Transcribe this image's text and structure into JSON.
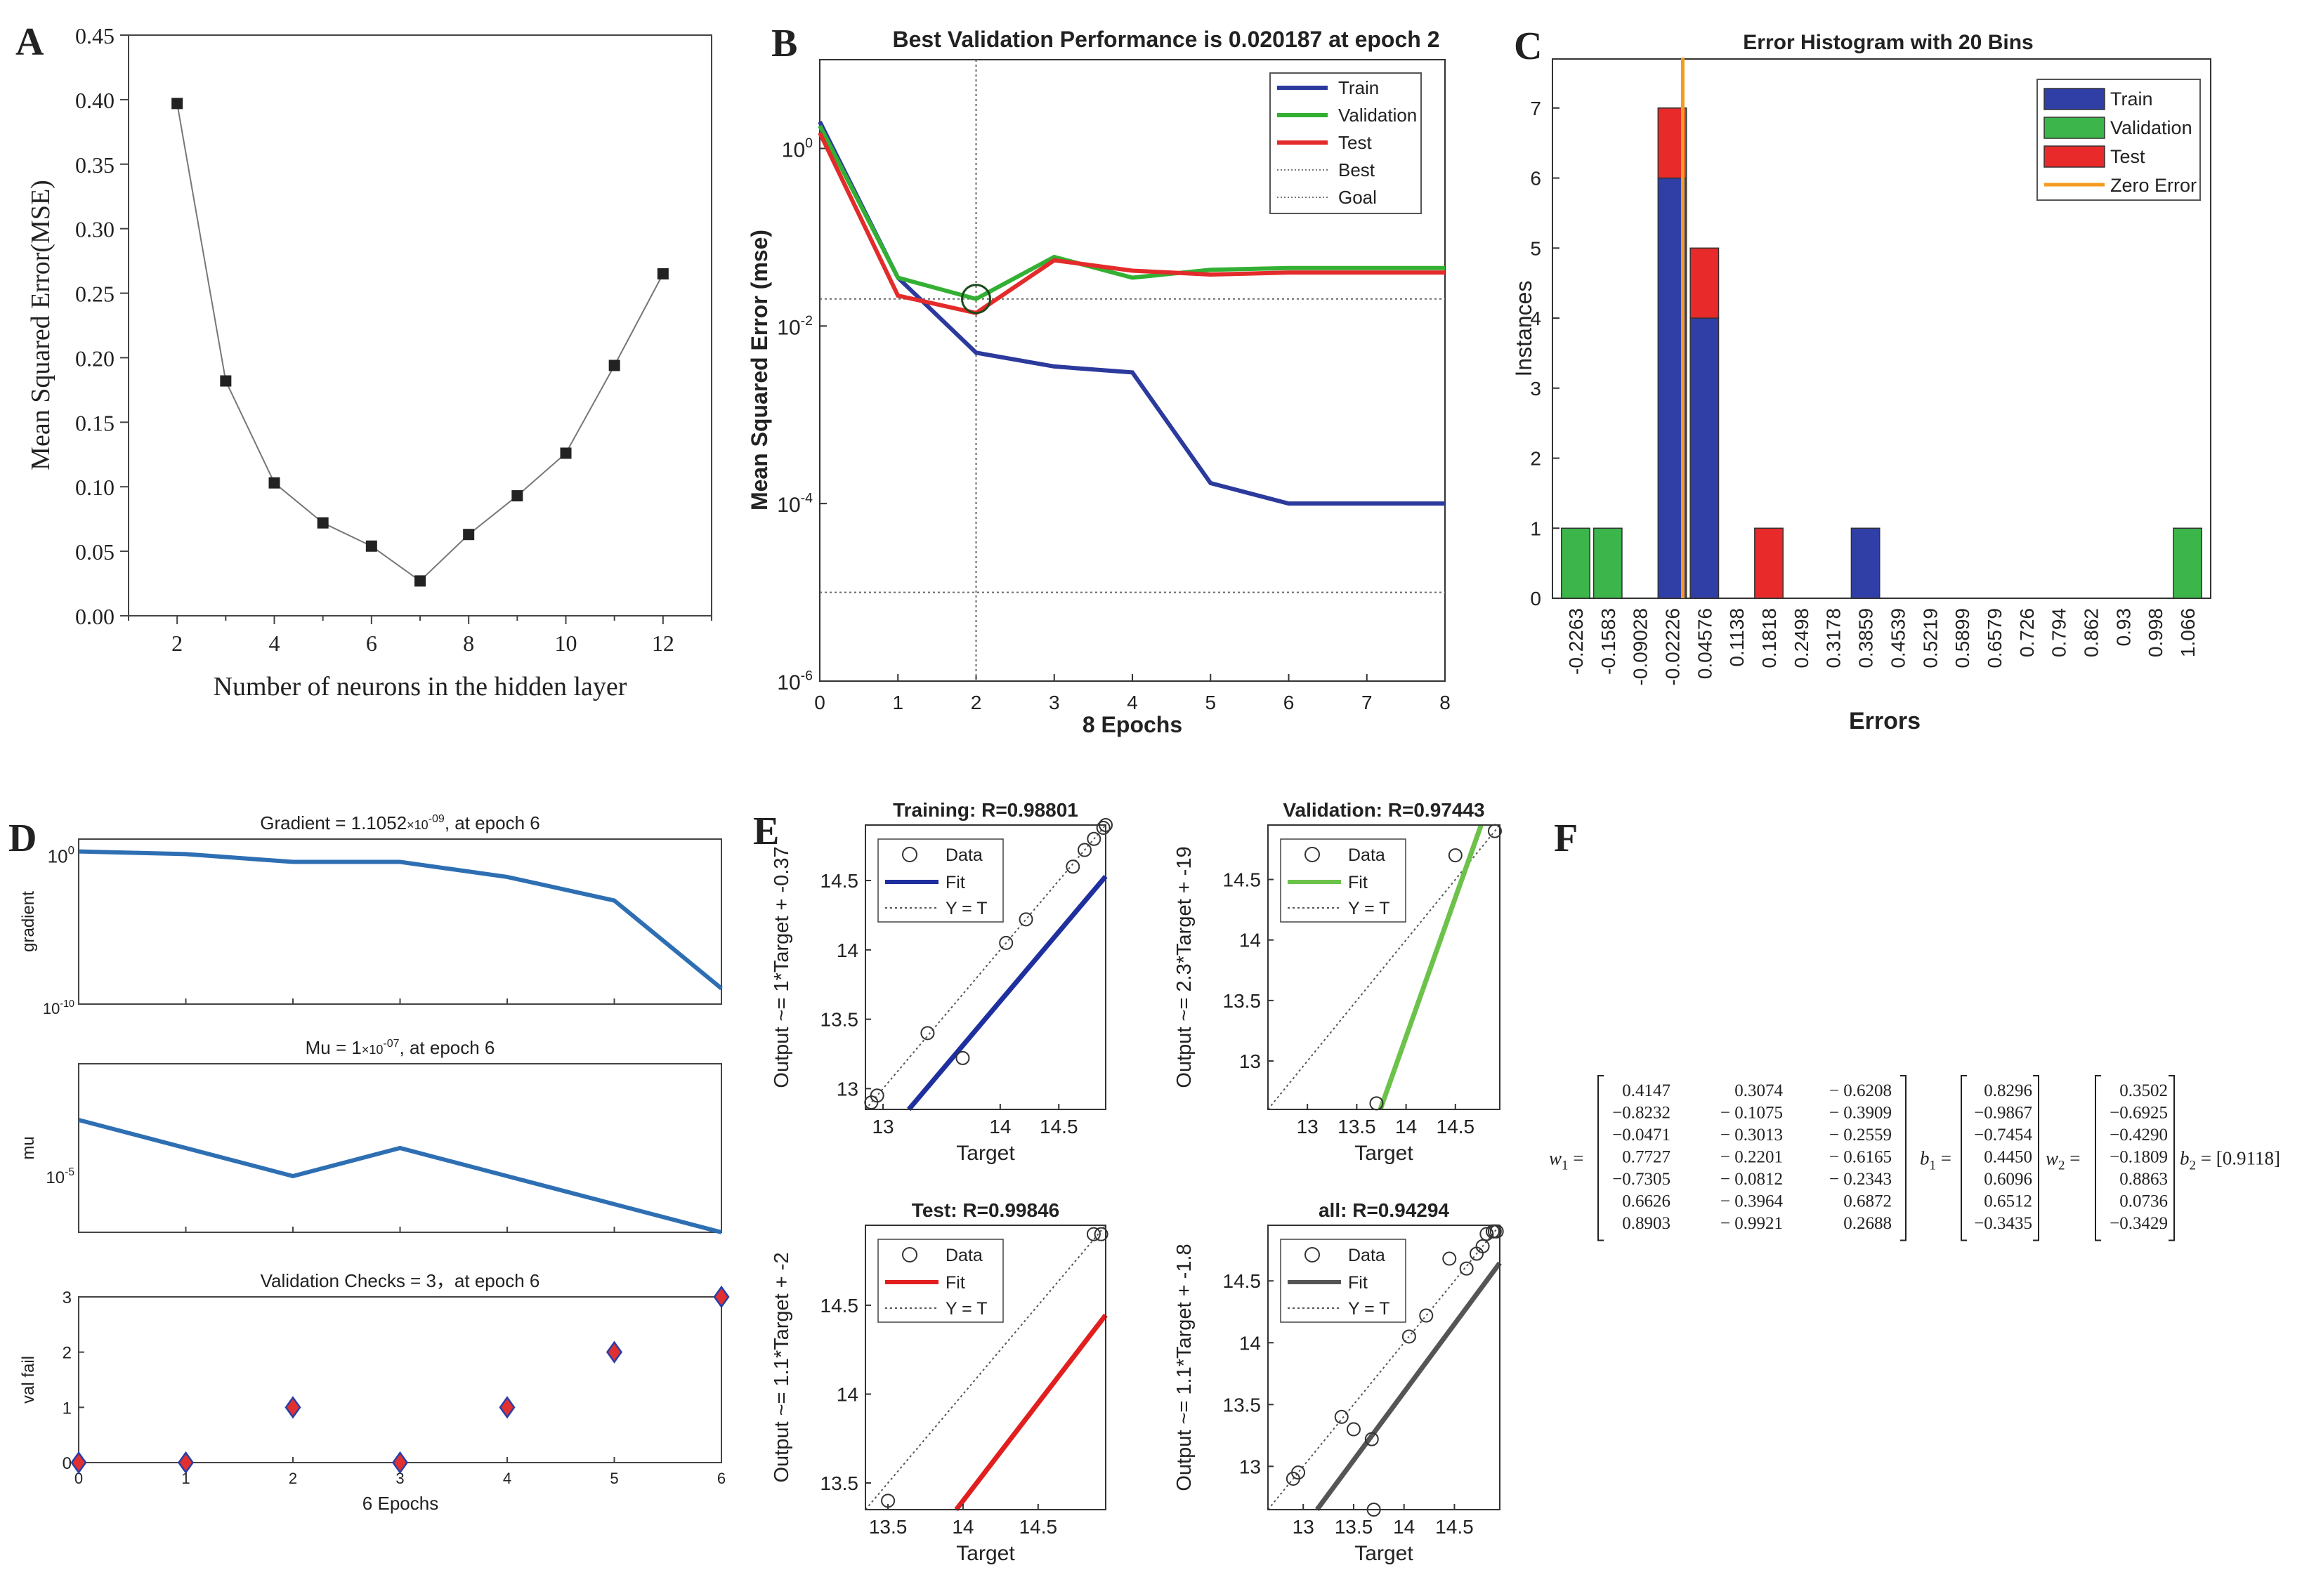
{
  "chart_data": [
    {
      "panel": "A",
      "type": "line",
      "title": "",
      "xlabel": "Number of neurons in the hidden layer",
      "ylabel": "Mean Squared Error(MSE)",
      "x": [
        2,
        3,
        4,
        5,
        6,
        7,
        8,
        9,
        10,
        11,
        12
      ],
      "y": [
        0.397,
        0.182,
        0.103,
        0.072,
        0.054,
        0.027,
        0.063,
        0.093,
        0.126,
        0.194,
        0.265
      ],
      "xlim": [
        1,
        13
      ],
      "ylim": [
        0,
        0.45
      ],
      "xticks": [
        2,
        4,
        6,
        8,
        10,
        12
      ],
      "yticks": [
        "0.00",
        "0.05",
        "0.10",
        "0.15",
        "0.20",
        "0.25",
        "0.30",
        "0.35",
        "0.40",
        "0.45"
      ]
    },
    {
      "panel": "B",
      "type": "line",
      "title": "Best Validation Performance is 0.020187 at epoch 2",
      "xlabel": "8 Epochs",
      "ylabel": "Mean Squared Error  (mse)",
      "yscale": "log",
      "xlim": [
        0,
        8
      ],
      "ylim": [
        1e-06,
        10
      ],
      "xticks": [
        "0",
        "1",
        "2",
        "3",
        "4",
        "5",
        "6",
        "7",
        "8"
      ],
      "yticks": [
        {
          "base": "10",
          "exp": "0",
          "v": 1
        },
        {
          "base": "10",
          "exp": "-2",
          "v": 0.01
        },
        {
          "base": "10",
          "exp": "-4",
          "v": 0.0001
        },
        {
          "base": "10",
          "exp": "-6",
          "v": 1e-06
        }
      ],
      "x": [
        0,
        1,
        2,
        3,
        4,
        5,
        6,
        7,
        8
      ],
      "series": [
        {
          "name": "Train",
          "color": "#2b3a9c",
          "values": [
            2.0,
            0.035,
            0.005,
            0.0035,
            0.003,
            0.00017,
            0.0001,
            0.0001,
            0.0001
          ]
        },
        {
          "name": "Validation",
          "color": "#33b033",
          "values": [
            1.8,
            0.035,
            0.020187,
            0.06,
            0.035,
            0.043,
            0.045,
            0.045,
            0.045
          ]
        },
        {
          "name": "Test",
          "color": "#e32b2b",
          "values": [
            1.5,
            0.022,
            0.014,
            0.055,
            0.042,
            0.038,
            0.04,
            0.04,
            0.04
          ]
        }
      ],
      "best": {
        "label": "Best",
        "value": 0.020187,
        "epoch": 2
      },
      "goal": {
        "label": "Goal",
        "value": 1e-05
      },
      "legend": [
        "Train",
        "Validation",
        "Test",
        "Best",
        "Goal"
      ]
    },
    {
      "panel": "C",
      "type": "bar",
      "title": "Error Histogram with 20 Bins",
      "xlabel": "Errors",
      "ylabel": "Instances",
      "ylim": [
        0,
        7.7
      ],
      "yticks": [
        "0",
        "1",
        "2",
        "3",
        "4",
        "5",
        "6",
        "7"
      ],
      "categories": [
        "-0.2263",
        "-0.1583",
        "-0.09028",
        "-0.02226",
        "0.04576",
        "0.1138",
        "0.1818",
        "0.2498",
        "0.3178",
        "0.3859",
        "0.4539",
        "0.5219",
        "0.5899",
        "0.6579",
        "0.726",
        "0.794",
        "0.862",
        "0.93",
        "0.998",
        "1.066"
      ],
      "series": [
        {
          "name": "Train",
          "color": "#2f3fa6",
          "values": [
            0,
            0,
            0,
            6,
            4,
            0,
            0,
            0,
            0,
            1,
            0,
            0,
            0,
            0,
            0,
            0,
            0,
            0,
            0,
            0
          ]
        },
        {
          "name": "Validation",
          "color": "#3cb54a",
          "values": [
            1,
            1,
            0,
            0,
            0,
            0,
            0,
            0,
            0,
            0,
            0,
            0,
            0,
            0,
            0,
            0,
            0,
            0,
            0,
            1
          ]
        },
        {
          "name": "Test",
          "color": "#e82a2a",
          "values": [
            0,
            0,
            0,
            1,
            1,
            0,
            1,
            0,
            0,
            0,
            0,
            0,
            0,
            0,
            0,
            0,
            0,
            0,
            0,
            0
          ]
        }
      ],
      "zero_error": {
        "name": "Zero Error",
        "color": "#f39c1f",
        "x": 0
      },
      "legend": [
        "Train",
        "Validation",
        "Test",
        "Zero Error"
      ]
    },
    {
      "panel": "D",
      "type": "line",
      "xlabel": "6  Epochs",
      "subplots": [
        {
          "title_pre": "Gradient = 1.1052",
          "title_mult": "×10",
          "title_exp": "-09",
          "title_post": ",  at epoch 6",
          "ylabel": "gradient",
          "yscale": "log",
          "ylim": [
            1e-10,
            10
          ],
          "ytick_top": {
            "base": "10",
            "exp": "0"
          },
          "ytick_bottom": {
            "base": "10",
            "exp": "-10"
          },
          "x": [
            0,
            1,
            2,
            3,
            4,
            5,
            6
          ],
          "values": [
            1.5,
            1.0,
            0.3,
            0.3,
            0.03,
            0.0008,
            1.1e-09
          ]
        },
        {
          "title_pre": "Mu = 1",
          "title_mult": "×10",
          "title_exp": "-07",
          "title_post": ",  at epoch 6",
          "ylabel": "mu",
          "yscale": "log",
          "ylim": [
            1e-07,
            0.1
          ],
          "ytick_mid": {
            "base": "10",
            "exp": "-5"
          },
          "x": [
            0,
            1,
            2,
            3,
            4,
            5,
            6
          ],
          "values": [
            0.001,
            0.0001,
            1e-05,
            0.0001,
            1e-05,
            1e-06,
            1e-07
          ]
        },
        {
          "title_pre": "Validation Checks = 3，at epoch 6",
          "title_mult": "",
          "title_exp": "",
          "title_post": "",
          "ylabel": "val fail",
          "yscale": "linear",
          "ylim": [
            0,
            3
          ],
          "yticks": [
            "0",
            "1",
            "2",
            "3"
          ],
          "x": [
            0,
            1,
            2,
            3,
            4,
            5,
            6
          ],
          "values": [
            0,
            0,
            1,
            0,
            1,
            2,
            3
          ]
        }
      ],
      "xticks": [
        "0",
        "1",
        "2",
        "3",
        "4",
        "5",
        "6"
      ]
    },
    {
      "panel": "E",
      "type": "scatter",
      "xlabel": "Target",
      "legend": [
        "Data",
        "Fit",
        "Y = T"
      ],
      "subplots": [
        {
          "title": "Training: R=0.98801",
          "ylabel": "Output ~= 1*Target + -0.37",
          "fit_color": "#1f2f9e",
          "xlim": [
            12.85,
            14.9
          ],
          "ylim": [
            12.85,
            14.9
          ],
          "xticks": [
            "13",
            "14",
            "14.5"
          ],
          "xtick_vals": [
            13,
            14,
            14.5
          ],
          "yticks": [
            "13",
            "13.5",
            "14",
            "14.5"
          ],
          "ytick_vals": [
            13,
            13.5,
            14,
            14.5
          ],
          "slope": 1,
          "intercept": -0.37,
          "x": [
            12.9,
            12.95,
            13.38,
            13.68,
            14.05,
            14.22,
            14.62,
            14.72,
            14.8,
            14.88,
            14.9
          ],
          "y": [
            12.9,
            12.95,
            13.4,
            13.22,
            14.05,
            14.22,
            14.6,
            14.72,
            14.8,
            14.88,
            14.9
          ]
        },
        {
          "title": "Validation: R=0.97443",
          "ylabel": "Output ~= 2.3*Target + -19",
          "fit_color": "#6cc24a",
          "xlim": [
            12.6,
            14.95
          ],
          "ylim": [
            12.6,
            14.95
          ],
          "xticks": [
            "13",
            "13.5",
            "14",
            "14.5"
          ],
          "xtick_vals": [
            13,
            13.5,
            14,
            14.5
          ],
          "yticks": [
            "13",
            "13.5",
            "14",
            "14.5"
          ],
          "ytick_vals": [
            13,
            13.5,
            14,
            14.5
          ],
          "slope": 2.3,
          "intercept": -19,
          "x": [
            13.7,
            14.5,
            14.9
          ],
          "y": [
            12.65,
            14.7,
            14.9
          ]
        },
        {
          "title": "Test: R=0.99846",
          "ylabel": "Output ~= 1.1*Target + -2",
          "fit_color": "#e11f1f",
          "xlim": [
            13.35,
            14.95
          ],
          "ylim": [
            13.35,
            14.95
          ],
          "xticks": [
            "13.5",
            "14",
            "14.5"
          ],
          "xtick_vals": [
            13.5,
            14,
            14.5
          ],
          "yticks": [
            "13.5",
            "14",
            "14.5"
          ],
          "ytick_vals": [
            13.5,
            14,
            14.5
          ],
          "slope": 1.1,
          "intercept": -2,
          "x": [
            13.5,
            14.87,
            14.92
          ],
          "y": [
            13.4,
            14.9,
            14.9
          ]
        },
        {
          "title": "all: R=0.94294",
          "ylabel": "Output ~= 1.1*Target + -1.8",
          "fit_color": "#555555",
          "xlim": [
            12.65,
            14.95
          ],
          "ylim": [
            12.65,
            14.95
          ],
          "xticks": [
            "13",
            "13.5",
            "14",
            "14.5"
          ],
          "xtick_vals": [
            13,
            13.5,
            14,
            14.5
          ],
          "yticks": [
            "13",
            "13.5",
            "14",
            "14.5"
          ],
          "ytick_vals": [
            13,
            13.5,
            14,
            14.5
          ],
          "slope": 1.1,
          "intercept": -1.8,
          "x": [
            12.9,
            12.95,
            13.38,
            13.5,
            13.68,
            13.7,
            14.05,
            14.22,
            14.45,
            14.62,
            14.72,
            14.78,
            14.82,
            14.88,
            14.9,
            14.92
          ],
          "y": [
            12.9,
            12.95,
            13.4,
            13.3,
            13.22,
            12.65,
            14.05,
            14.22,
            14.68,
            14.6,
            14.72,
            14.78,
            14.88,
            14.9,
            14.9,
            14.9
          ]
        }
      ]
    },
    {
      "panel": "F",
      "type": "table",
      "w1": {
        "symbol": "w",
        "sub": "1",
        "rows": [
          [
            "0.4147",
            "0.3074",
            "− 0.6208"
          ],
          [
            "−0.8232",
            "− 0.1075",
            "− 0.3909"
          ],
          [
            "−0.0471",
            "− 0.3013",
            "− 0.2559"
          ],
          [
            "0.7727",
            "− 0.2201",
            "− 0.6165"
          ],
          [
            "−0.7305",
            "− 0.0812",
            "− 0.2343"
          ],
          [
            "0.6626",
            "− 0.3964",
            "0.6872"
          ],
          [
            "0.8903",
            "− 0.9921",
            "0.2688"
          ]
        ]
      },
      "b1": {
        "symbol": "b",
        "sub": "1",
        "rows": [
          "0.8296",
          "−0.9867",
          "−0.7454",
          "0.4450",
          "0.6096",
          "0.6512",
          "−0.3435"
        ]
      },
      "w2": {
        "symbol": "w",
        "sub": "2",
        "rows": [
          "0.3502",
          "−0.6925",
          "−0.4290",
          "−0.1809",
          "0.8863",
          "0.0736",
          "−0.3429"
        ]
      },
      "b2": {
        "symbol": "b",
        "sub": "2",
        "value": "[0.9118]"
      }
    }
  ],
  "panel_labels": [
    "A",
    "B",
    "C",
    "D",
    "E",
    "F"
  ]
}
